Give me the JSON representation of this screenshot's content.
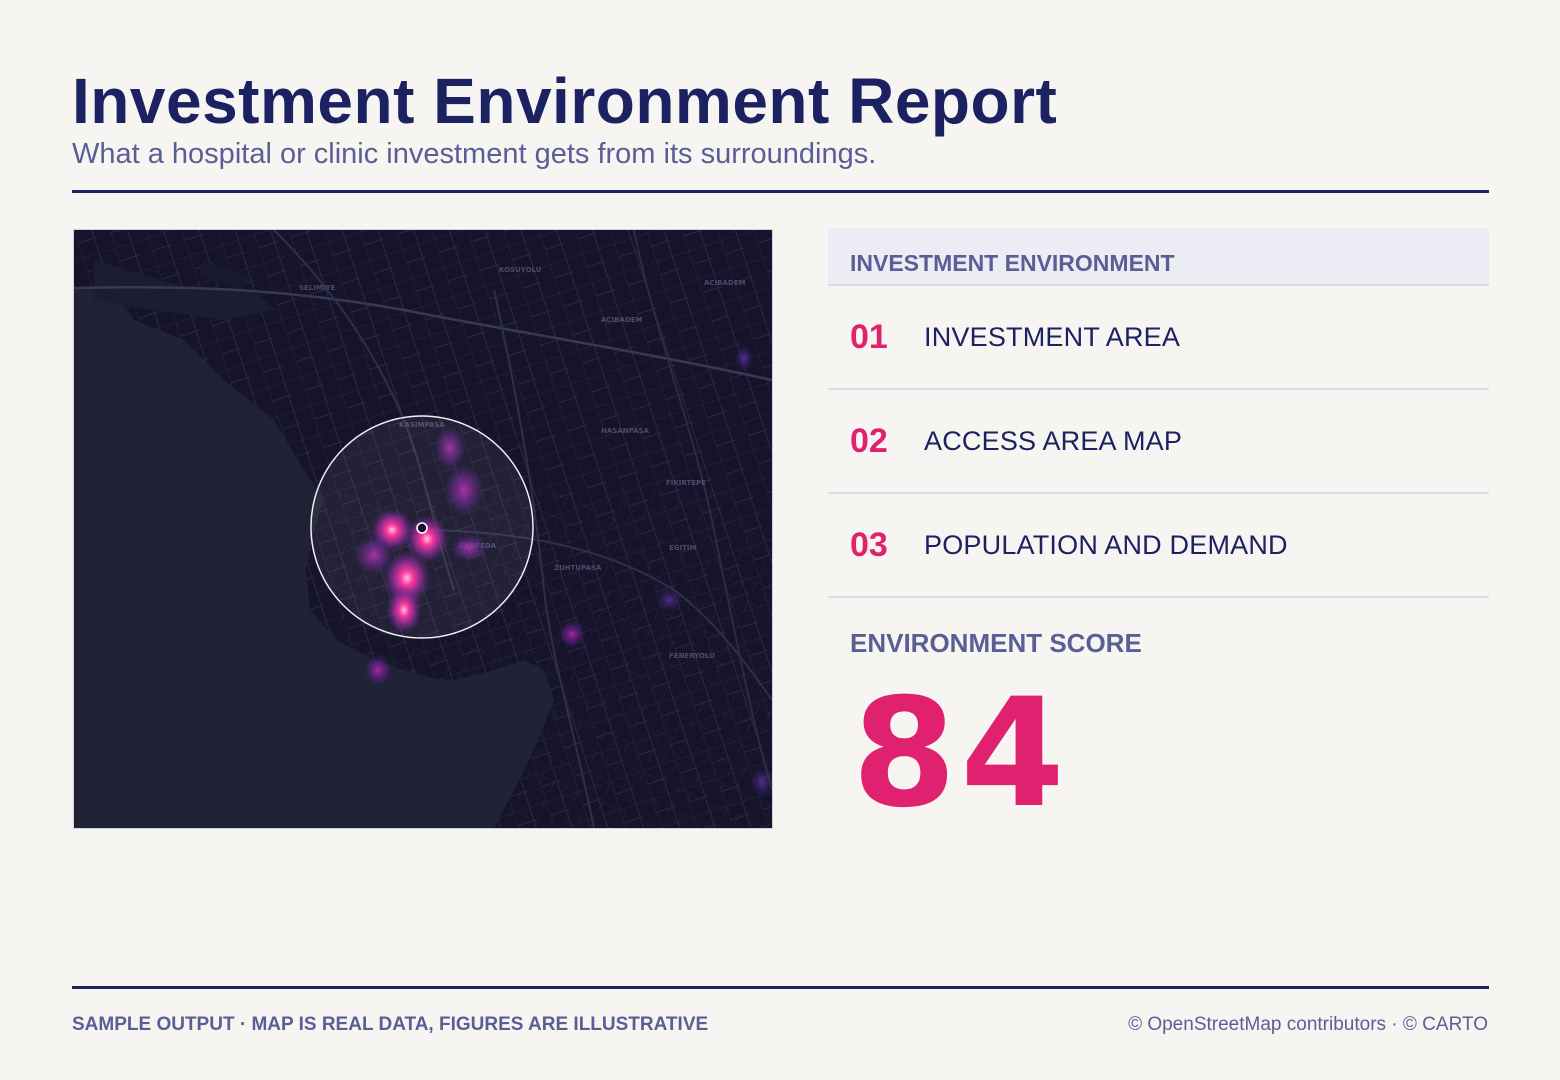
{
  "header": {
    "title": "Investment Environment Report",
    "subtitle": "What a hospital or clinic investment gets from its surroundings."
  },
  "map": {
    "district_labels": [
      "KOSUYOLU",
      "ACIBADEM",
      "ACIBADEM",
      "HASANPASA",
      "FIKIRTEPE",
      "EGITIM",
      "ZUHTUPASA",
      "FENERYOLU",
      "SELIMIYE",
      "KASIMPASA",
      "CANFEDA"
    ]
  },
  "panel": {
    "header": "INVESTMENT ENVIRONMENT",
    "items": [
      {
        "num": "01",
        "label": "INVESTMENT AREA"
      },
      {
        "num": "02",
        "label": "ACCESS AREA MAP"
      },
      {
        "num": "03",
        "label": "POPULATION AND DEMAND"
      }
    ],
    "score_label": "ENVIRONMENT SCORE",
    "score_value": "84"
  },
  "footer": {
    "left": "SAMPLE OUTPUT · MAP IS REAL DATA, FIGURES ARE ILLUSTRATIVE",
    "right": "© OpenStreetMap contributors · © CARTO"
  },
  "colors": {
    "accent": "#e0216f",
    "navy": "#1c2161",
    "muted": "#5a5e95",
    "map_bg": "#141327"
  }
}
